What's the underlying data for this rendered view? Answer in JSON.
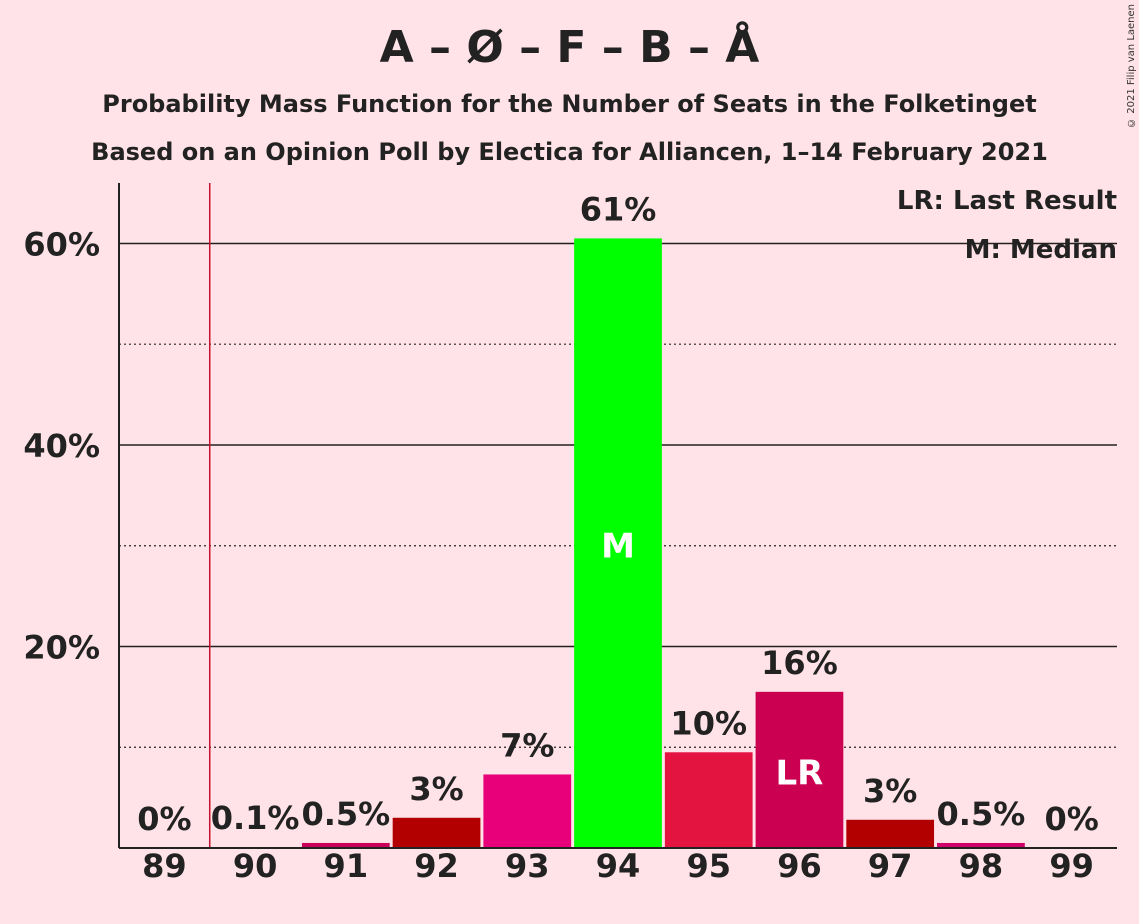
{
  "title": "A – Ø – F – B – Å",
  "subtitle_1": "Probability Mass Function for the Number of Seats in the Folketinget",
  "subtitle_2": "Based on an Opinion Poll by Electica for Alliancen, 1–14 February 2021",
  "copyright": "© 2021 Filip van Laenen",
  "legend": {
    "last_result": "LR: Last Result",
    "median": "M: Median"
  },
  "chart_data": {
    "type": "bar",
    "categories": [
      "89",
      "90",
      "91",
      "92",
      "93",
      "94",
      "95",
      "96",
      "97",
      "98",
      "99"
    ],
    "values": [
      0,
      0.1,
      0.5,
      3,
      7.3,
      60.5,
      9.5,
      15.5,
      2.8,
      0.5,
      0
    ],
    "value_labels": [
      "0%",
      "0.1%",
      "0.5%",
      "3%",
      "7%",
      "61%",
      "10%",
      "16%",
      "3%",
      "0.5%",
      "0%"
    ],
    "colors": [
      "#E8006E",
      "#E8006E",
      "#C8005A",
      "#B20000",
      "#E8007A",
      "#00FF00",
      "#E31540",
      "#CC0050",
      "#B20000",
      "#D0006A",
      "#E8006E"
    ],
    "ylim": [
      0,
      66
    ],
    "yticks": [
      20,
      40,
      60
    ],
    "ytick_labels": [
      "20%",
      "40%",
      "60%"
    ],
    "minor_gridlines": [
      10,
      30,
      50
    ],
    "median_category": "94",
    "median_marker": "M",
    "last_result_category": "96",
    "last_result_marker": "LR",
    "last_result_line_between": [
      "89",
      "90"
    ],
    "grid": true,
    "legend_position": "top-right"
  }
}
